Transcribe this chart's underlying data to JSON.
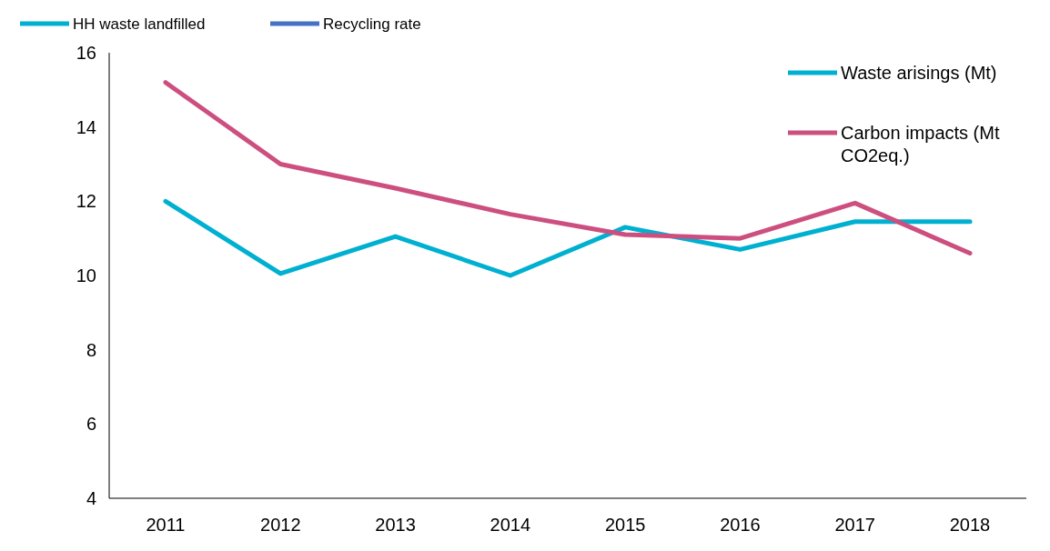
{
  "chart_data": {
    "type": "line",
    "categories": [
      "2011",
      "2012",
      "2013",
      "2014",
      "2015",
      "2016",
      "2017",
      "2018"
    ],
    "series": [
      {
        "name": "HH waste landfilled",
        "color": "#00b0d0",
        "values": [
          null,
          null,
          null,
          null,
          null,
          null,
          null,
          null
        ]
      },
      {
        "name": "Recycling rate",
        "color": "#4472c4",
        "values": [
          null,
          null,
          null,
          null,
          null,
          null,
          null,
          null
        ]
      },
      {
        "name": "Waste arisings (Mt)",
        "color": "#00b0d0",
        "values": [
          12.0,
          10.05,
          11.05,
          10.0,
          11.3,
          10.7,
          11.45,
          11.45
        ]
      },
      {
        "name": "Carbon impacts (Mt CO2eq.)",
        "color": "#cc4f7f",
        "values": [
          15.2,
          13.0,
          12.35,
          11.65,
          11.1,
          11.0,
          11.95,
          10.6
        ]
      }
    ],
    "ylim": [
      4,
      16
    ],
    "yticks": [
      4,
      6,
      8,
      10,
      12,
      14,
      16
    ],
    "legend": "top",
    "marker": "none",
    "line_style": "solid"
  }
}
